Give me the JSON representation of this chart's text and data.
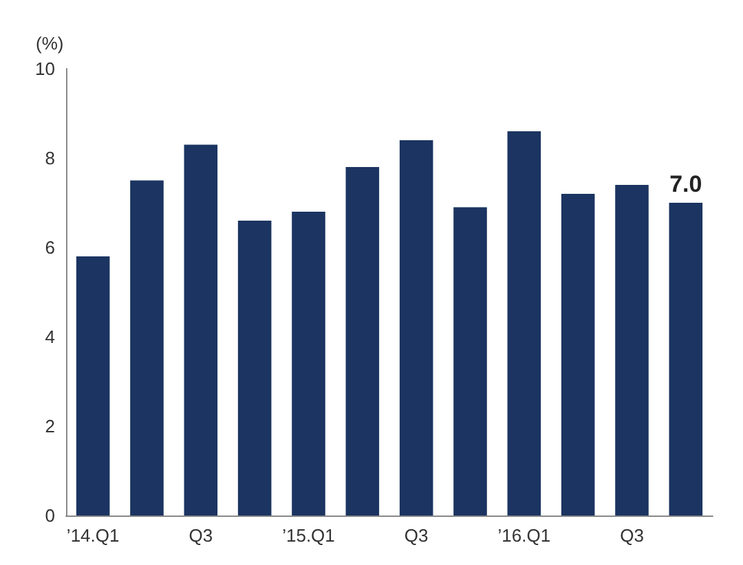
{
  "chart_data": {
    "type": "bar",
    "ylabel": "(%)",
    "categories": [
      "’14.Q1",
      null,
      "Q3",
      null,
      "’15.Q1",
      null,
      "Q3",
      null,
      "’16.Q1",
      null,
      "Q3",
      null
    ],
    "values": [
      5.8,
      7.5,
      8.3,
      6.6,
      6.8,
      7.8,
      8.4,
      6.9,
      8.6,
      7.2,
      7.4,
      7.0
    ],
    "value_labels": [
      null,
      null,
      null,
      null,
      null,
      null,
      null,
      null,
      null,
      null,
      null,
      "7.0"
    ],
    "color": "#1b3461",
    "ylim": [
      0,
      10
    ],
    "yticks": [
      0,
      2,
      4,
      6,
      8,
      10
    ]
  }
}
